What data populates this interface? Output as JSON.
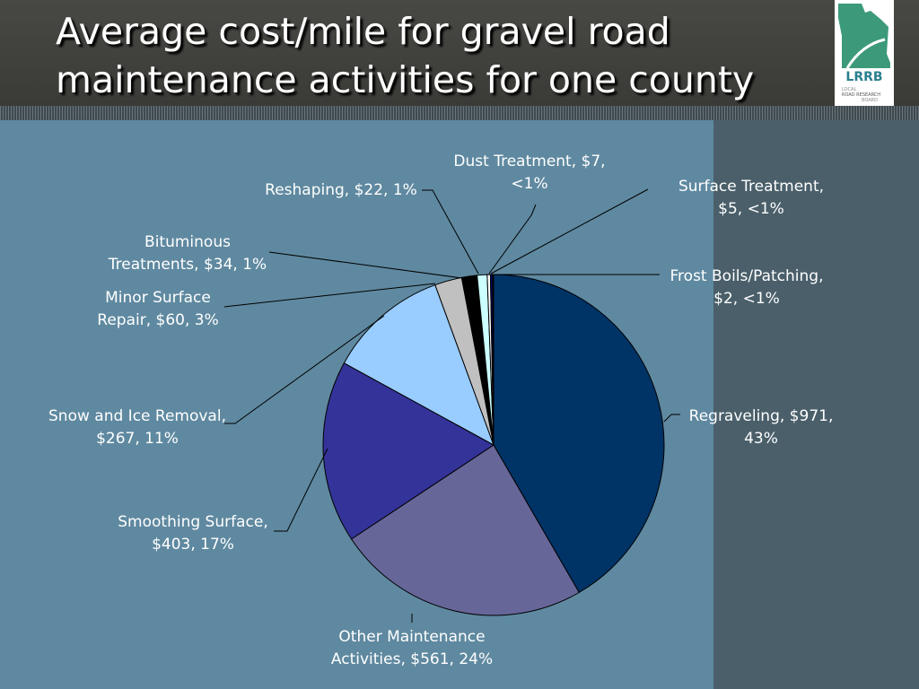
{
  "chart_data": {
    "type": "pie",
    "title": "Average cost/mile for gravel road maintenance activities for one county",
    "values": [
      971,
      561,
      403,
      267,
      60,
      34,
      22,
      7,
      5,
      2
    ],
    "value_labels": [
      "Regraveling, $971, 43%",
      "Other Maintenance Activities, $561, 24%",
      "Smoothing Surface, $403, 17%",
      "Snow and Ice Removal, $267, 11%",
      "Minor Surface Repair, $60, 3%",
      "Bituminous Treatments, $34, 1%",
      "Reshaping, $22, 1%",
      "Dust Treatment, $7, <1%",
      "Surface Treatment, $5, <1%",
      "Frost Boils/Patching, $2, <1%"
    ],
    "colors": [
      "#003366",
      "#666699",
      "#333399",
      "#99CCFF",
      "#C0C0C0",
      "#000000",
      "#CCFFFF",
      "#FFFFFF",
      "#000066",
      "#333399"
    ]
  },
  "logo": {
    "name": "LRRB",
    "lines": [
      "LOCAL",
      "ROAD RESEARCH",
      "BOARD"
    ]
  }
}
